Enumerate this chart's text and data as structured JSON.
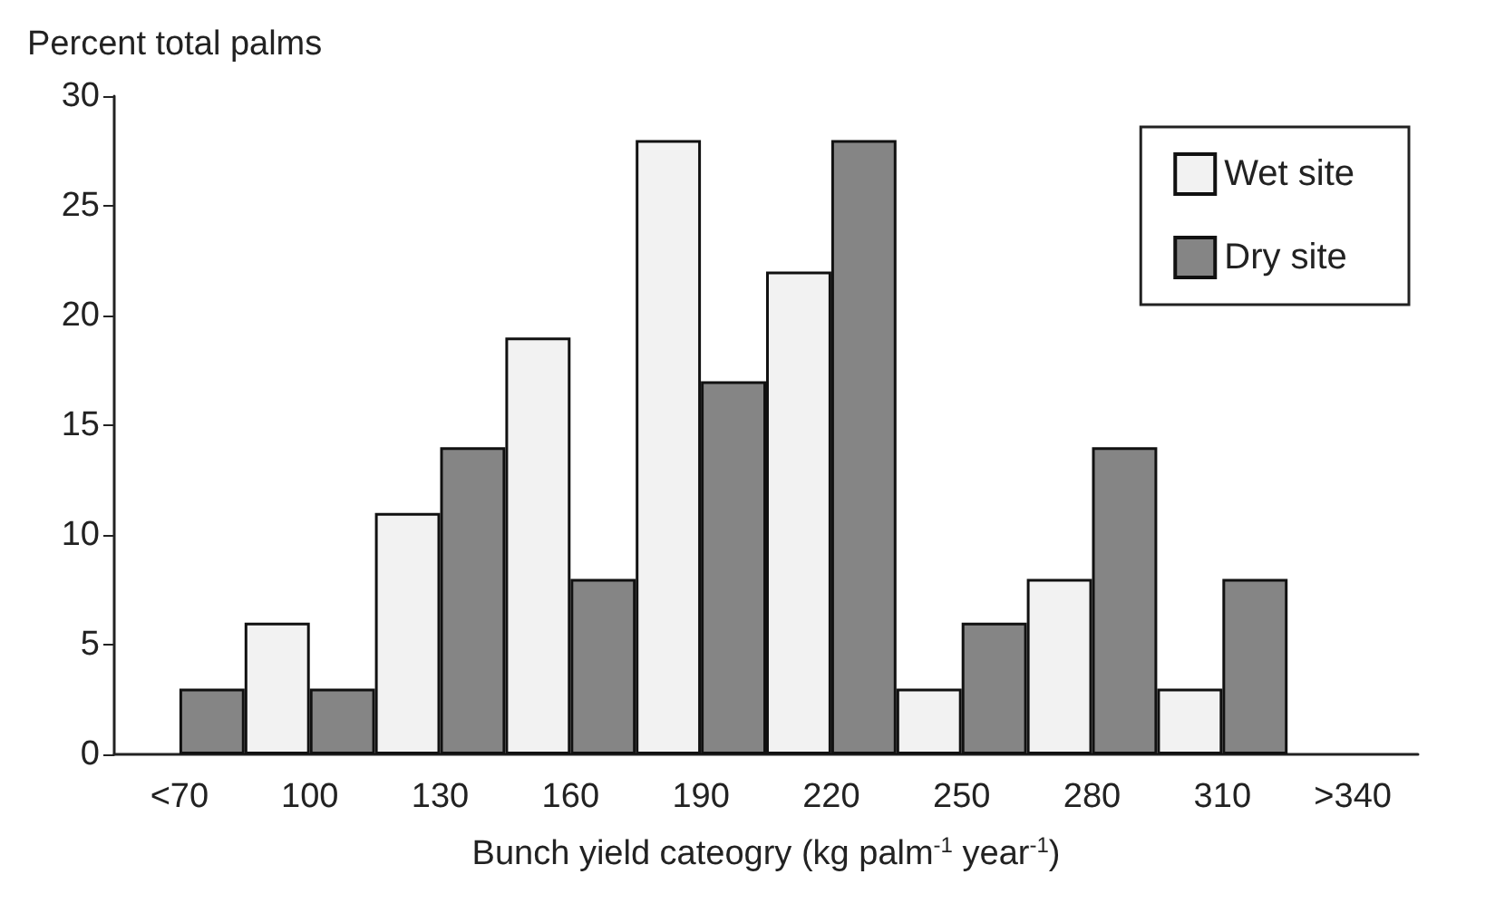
{
  "chart_data": {
    "type": "bar",
    "ylabel": "Percent total palms",
    "xlabel": "Bunch yield cateogry (kg palm$^{-1}$ year$^{-1}$)",
    "categories": [
      "<70",
      "100",
      "130",
      "160",
      "190",
      "220",
      "250",
      "280",
      "310",
      ">340"
    ],
    "series": [
      {
        "name": "Wet site",
        "color": "#f2f2f2",
        "values": [
          null,
          6,
          11,
          19,
          28,
          22,
          3,
          8,
          3,
          null
        ]
      },
      {
        "name": "Dry site",
        "color": "#858585",
        "values": [
          3,
          3,
          14,
          8,
          17,
          28,
          6,
          14,
          8,
          null
        ]
      }
    ],
    "ylim": [
      0,
      30
    ],
    "yticks": [
      0,
      5,
      10,
      15,
      20,
      25,
      30
    ],
    "grid": false,
    "legend": "top right"
  }
}
